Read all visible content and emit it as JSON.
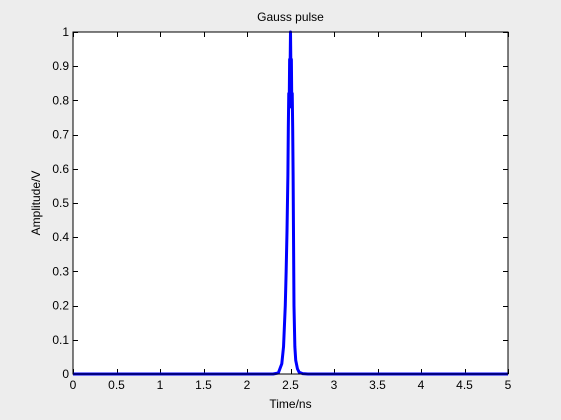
{
  "chart_data": {
    "type": "line",
    "title": "Gauss pulse",
    "xlabel": "Time/ns",
    "ylabel": "Amplitude/V",
    "xlim": [
      0,
      5
    ],
    "ylim": [
      0,
      1
    ],
    "grid": false,
    "line_color": "#0000ff",
    "background_color": "#ededed",
    "axes_color": "#ffffff",
    "x_ticks": [
      0,
      0.5,
      1,
      1.5,
      2,
      2.5,
      3,
      3.5,
      4,
      4.5,
      5
    ],
    "x_tick_labels": [
      "0",
      "0.5",
      "1",
      "1.5",
      "2",
      "2.5",
      "3",
      "3.5",
      "4",
      "4.5",
      "5"
    ],
    "y_ticks": [
      0,
      0.1,
      0.2,
      0.3,
      0.4,
      0.5,
      0.6,
      0.7,
      0.8,
      0.9,
      1
    ],
    "y_tick_labels": [
      "0",
      "0.1",
      "0.2",
      "0.3",
      "0.4",
      "0.5",
      "0.6",
      "0.7",
      "0.8",
      "0.9",
      "1"
    ],
    "series": [
      {
        "x": [
          0,
          1.0,
          2.0,
          2.3,
          2.36,
          2.4,
          2.42,
          2.44,
          2.45,
          2.46,
          2.47,
          2.475,
          2.48,
          2.485,
          2.49,
          2.495,
          2.5,
          2.505,
          2.51,
          2.515,
          2.52,
          2.525,
          2.53,
          2.54,
          2.55,
          2.56,
          2.58,
          2.6,
          2.64,
          2.7,
          3.0,
          4.0,
          5.0
        ],
        "y": [
          0,
          0,
          0,
          0,
          0.003,
          0.03,
          0.08,
          0.2,
          0.3,
          0.42,
          0.58,
          0.72,
          0.82,
          0.78,
          0.92,
          0.88,
          1.0,
          0.88,
          0.92,
          0.78,
          0.82,
          0.72,
          0.58,
          0.2,
          0.08,
          0.04,
          0.015,
          0.005,
          0.001,
          0,
          0,
          0,
          0
        ]
      }
    ]
  }
}
